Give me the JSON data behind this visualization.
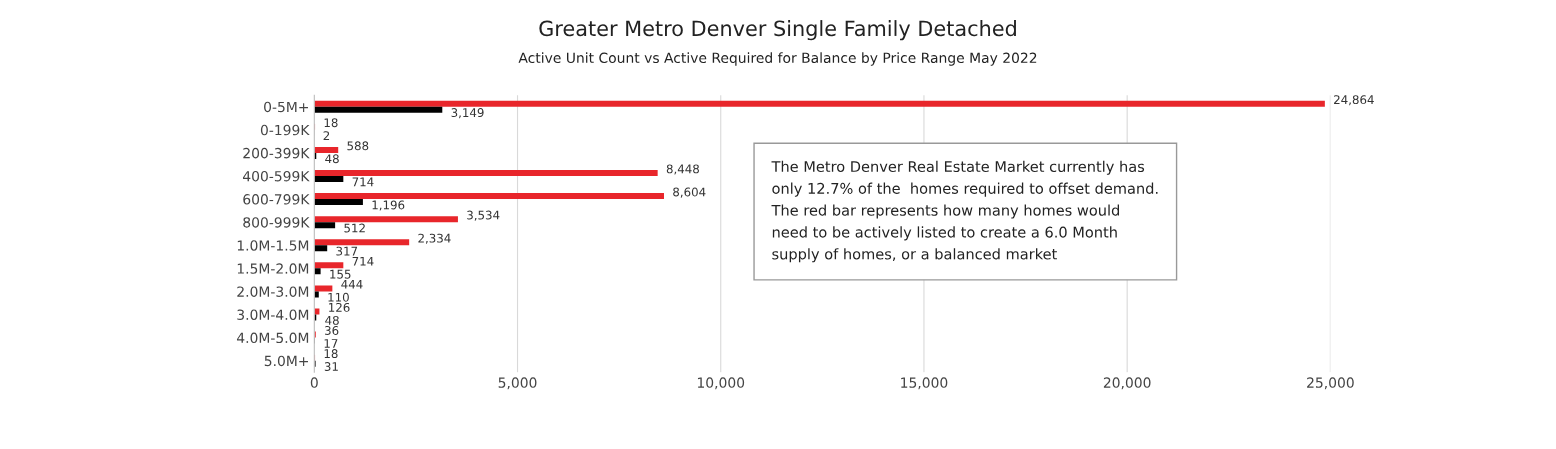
{
  "chart_data": {
    "type": "bar",
    "orientation": "horizontal",
    "title": "Greater Metro Denver Single Family Detached",
    "subtitle": "Active Unit Count vs Active Required for Balance by Price Range May 2022",
    "categories": [
      "0-5M+",
      "0-199K",
      "200-399K",
      "400-599K",
      "600-799K",
      "800-999K",
      "1.0M-1.5M",
      "1.5M-2.0M",
      "2.0M-3.0M",
      "3.0M-4.0M",
      "4.0M-5.0M",
      "5.0M+"
    ],
    "series": [
      {
        "color": "#e8262b",
        "values": [
          24864,
          18,
          588,
          8448,
          8604,
          3534,
          2334,
          714,
          444,
          126,
          36,
          18
        ],
        "value_labels": [
          "24,864",
          "18",
          "588",
          "8,448",
          "8,604",
          "3,534",
          "2,334",
          "714",
          "444",
          "126",
          "36",
          "18"
        ]
      },
      {
        "color": "#000000",
        "values": [
          3149,
          2,
          48,
          714,
          1196,
          512,
          317,
          155,
          110,
          48,
          17,
          31
        ],
        "value_labels": [
          "3,149",
          "2",
          "48",
          "714",
          "1,196",
          "512",
          "317",
          "155",
          "110",
          "48",
          "17",
          "31"
        ]
      }
    ],
    "xlim": [
      0,
      25000
    ],
    "xticks": [
      0,
      {
        "value": 5000,
        "label": "5,000"
      },
      {
        "value": 10000,
        "label": "10,000"
      },
      {
        "value": 15000,
        "label": "15,000"
      },
      {
        "value": 20000,
        "label": "20,000"
      },
      {
        "value": 25000,
        "label": "25,000"
      }
    ],
    "grid": "x",
    "legend": false,
    "annotations": [
      "The Metro Denver Real Estate Market currently has\nonly 12.7% of the  homes required to offset demand.\nThe red bar represents how many homes would\nneed to be actively listed to create a 6.0 Month\nsupply of homes, or a balanced market"
    ]
  }
}
